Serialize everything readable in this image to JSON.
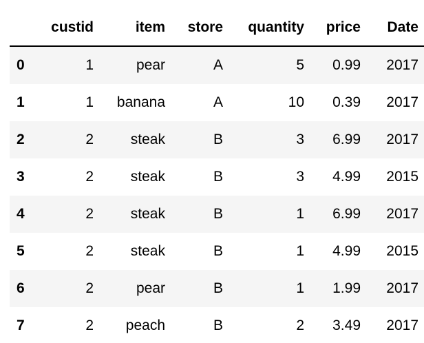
{
  "dataframe": {
    "columns": [
      "custid",
      "item",
      "store",
      "quantity",
      "price",
      "Date"
    ],
    "index_header": "",
    "rows": [
      {
        "index": "0",
        "custid": "1",
        "item": "pear",
        "store": "A",
        "quantity": "5",
        "price": "0.99",
        "Date": "2017"
      },
      {
        "index": "1",
        "custid": "1",
        "item": "banana",
        "store": "A",
        "quantity": "10",
        "price": "0.39",
        "Date": "2017"
      },
      {
        "index": "2",
        "custid": "2",
        "item": "steak",
        "store": "B",
        "quantity": "3",
        "price": "6.99",
        "Date": "2017"
      },
      {
        "index": "3",
        "custid": "2",
        "item": "steak",
        "store": "B",
        "quantity": "3",
        "price": "4.99",
        "Date": "2015"
      },
      {
        "index": "4",
        "custid": "2",
        "item": "steak",
        "store": "B",
        "quantity": "1",
        "price": "6.99",
        "Date": "2017"
      },
      {
        "index": "5",
        "custid": "2",
        "item": "steak",
        "store": "B",
        "quantity": "1",
        "price": "4.99",
        "Date": "2015"
      },
      {
        "index": "6",
        "custid": "2",
        "item": "pear",
        "store": "B",
        "quantity": "1",
        "price": "1.99",
        "Date": "2017"
      },
      {
        "index": "7",
        "custid": "2",
        "item": "peach",
        "store": "B",
        "quantity": "2",
        "price": "3.49",
        "Date": "2017"
      }
    ]
  },
  "colors": {
    "stripe": "#f5f5f5",
    "background": "#ffffff",
    "text": "#000000",
    "header_rule": "#000000"
  }
}
